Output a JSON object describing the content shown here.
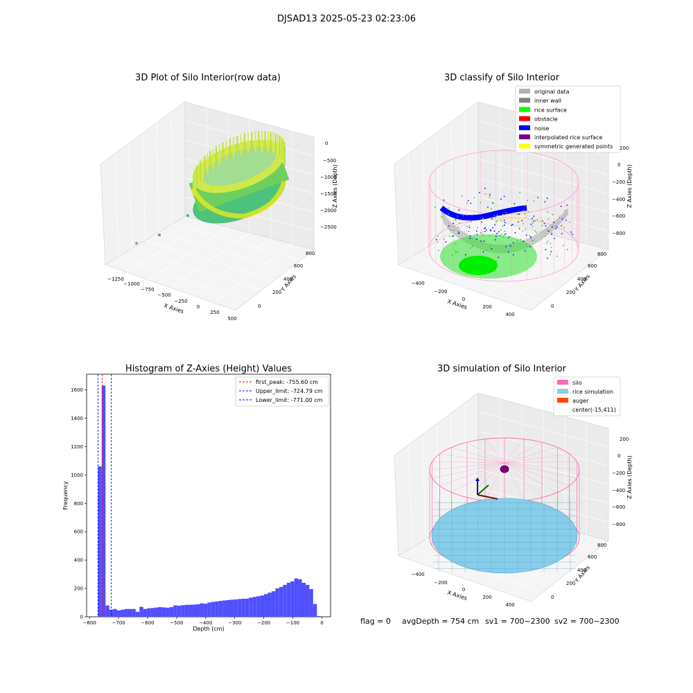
{
  "figure": {
    "title": "DJSAD13 2025-05-23 02:23:06",
    "footer": {
      "flag": "flag = 0",
      "avg_depth": "avgDepth = 754 cm",
      "sv1": "sv1 = 700~2300",
      "sv2": "sv2 = 700~2300"
    }
  },
  "panels": {
    "raw": {
      "title": "3D Plot of Silo Interior(row data)",
      "xlabel": "X Axies",
      "ylabel": "Y Axies",
      "zlabel": "Z Axies (Depth)",
      "xticks": [
        "−1250",
        "−1000",
        "−750",
        "−500",
        "−250",
        "0",
        "250",
        "500"
      ],
      "yticks": [
        "0",
        "200",
        "400",
        "600",
        "800"
      ],
      "zticks": [
        "0",
        "−500",
        "−1000",
        "−1500",
        "−2000",
        "−2500"
      ]
    },
    "classify": {
      "title": "3D classify of Silo Interior",
      "xlabel": "X Axies",
      "ylabel": "Y Axies",
      "zlabel": "Z Axies (Depth)",
      "xticks": [
        "−400",
        "−200",
        "0",
        "200",
        "400"
      ],
      "yticks": [
        "0",
        "200",
        "400",
        "600",
        "800"
      ],
      "zticks": [
        "200",
        "0",
        "−200",
        "−400",
        "−600",
        "−800"
      ],
      "legend": [
        {
          "label": "original data",
          "color": "#b0b0b0"
        },
        {
          "label": "inner wall",
          "color": "#808080"
        },
        {
          "label": "rice surface",
          "color": "#00ff00"
        },
        {
          "label": "obstacle",
          "color": "#ff0000"
        },
        {
          "label": "noise",
          "color": "#0000ff"
        },
        {
          "label": "interpolated rice surface",
          "color": "#800080"
        },
        {
          "label": "symmetric generated points",
          "color": "#ffff00"
        }
      ]
    },
    "simulation": {
      "title": "3D simulation of Silo Interior",
      "xlabel": "X Axies",
      "ylabel": "Y Axies",
      "zlabel": "Z Axies (Depth)",
      "xticks": [
        "−400",
        "−200",
        "0",
        "200",
        "400"
      ],
      "yticks": [
        "0",
        "200",
        "400",
        "600",
        "800"
      ],
      "zticks": [
        "200",
        "0",
        "−200",
        "−400",
        "−600",
        "−800"
      ],
      "legend": [
        {
          "label": "silo",
          "color": "#ff69b4"
        },
        {
          "label": "rice simulation",
          "color": "#87ceeb"
        },
        {
          "label": "auger",
          "color": "#ff4500"
        },
        {
          "label": "center(-15,411)",
          "color": ""
        }
      ]
    }
  },
  "chart_data": {
    "type": "bar",
    "title": "Histogram of Z-Axies (Height) Values",
    "xlabel": "Depth (cm)",
    "ylabel": "Frequency",
    "xlim": [
      -810,
      30
    ],
    "ylim": [
      0,
      1710
    ],
    "xticks": [
      -800,
      -700,
      -600,
      -500,
      -400,
      -300,
      -200,
      -100,
      0
    ],
    "yticks": [
      0,
      200,
      400,
      600,
      800,
      1000,
      1200,
      1400,
      1600
    ],
    "bin_width": 13,
    "bar_color": "#5050ff",
    "bins": [
      {
        "x": -771,
        "count": 1060
      },
      {
        "x": -758,
        "count": 1630
      },
      {
        "x": -745,
        "count": 80
      },
      {
        "x": -732,
        "count": 50
      },
      {
        "x": -719,
        "count": 55
      },
      {
        "x": -706,
        "count": 45
      },
      {
        "x": -693,
        "count": 50
      },
      {
        "x": -680,
        "count": 55
      },
      {
        "x": -667,
        "count": 55
      },
      {
        "x": -654,
        "count": 55
      },
      {
        "x": -641,
        "count": 35
      },
      {
        "x": -628,
        "count": 70
      },
      {
        "x": -615,
        "count": 55
      },
      {
        "x": -602,
        "count": 60
      },
      {
        "x": -589,
        "count": 62
      },
      {
        "x": -576,
        "count": 65
      },
      {
        "x": -563,
        "count": 68
      },
      {
        "x": -550,
        "count": 66
      },
      {
        "x": -537,
        "count": 64
      },
      {
        "x": -524,
        "count": 68
      },
      {
        "x": -511,
        "count": 80
      },
      {
        "x": -498,
        "count": 78
      },
      {
        "x": -485,
        "count": 82
      },
      {
        "x": -472,
        "count": 84
      },
      {
        "x": -459,
        "count": 85
      },
      {
        "x": -446,
        "count": 86
      },
      {
        "x": -433,
        "count": 88
      },
      {
        "x": -420,
        "count": 95
      },
      {
        "x": -407,
        "count": 92
      },
      {
        "x": -394,
        "count": 100
      },
      {
        "x": -381,
        "count": 105
      },
      {
        "x": -368,
        "count": 108
      },
      {
        "x": -355,
        "count": 112
      },
      {
        "x": -342,
        "count": 115
      },
      {
        "x": -329,
        "count": 118
      },
      {
        "x": -316,
        "count": 120
      },
      {
        "x": -303,
        "count": 122
      },
      {
        "x": -290,
        "count": 125
      },
      {
        "x": -277,
        "count": 127
      },
      {
        "x": -264,
        "count": 128
      },
      {
        "x": -251,
        "count": 135
      },
      {
        "x": -238,
        "count": 140
      },
      {
        "x": -225,
        "count": 145
      },
      {
        "x": -212,
        "count": 150
      },
      {
        "x": -199,
        "count": 160
      },
      {
        "x": -186,
        "count": 170
      },
      {
        "x": -173,
        "count": 180
      },
      {
        "x": -160,
        "count": 200
      },
      {
        "x": -147,
        "count": 210
      },
      {
        "x": -134,
        "count": 225
      },
      {
        "x": -121,
        "count": 240
      },
      {
        "x": -108,
        "count": 250
      },
      {
        "x": -95,
        "count": 270
      },
      {
        "x": -82,
        "count": 265
      },
      {
        "x": -69,
        "count": 240
      },
      {
        "x": -56,
        "count": 225
      },
      {
        "x": -43,
        "count": 195
      },
      {
        "x": -30,
        "count": 90
      },
      {
        "x": -17,
        "count": 5
      }
    ],
    "lines": [
      {
        "label": "first_peak: -755.60 cm",
        "x": -755.6,
        "color": "#ff0000"
      },
      {
        "label": "Upper_limit: -724.79 cm",
        "x": -724.79,
        "color": "#0000ff"
      },
      {
        "label": "Lower_limit: -771.00 cm",
        "x": -771.0,
        "color": "#0000ff"
      }
    ],
    "legend_position": "top-right"
  }
}
